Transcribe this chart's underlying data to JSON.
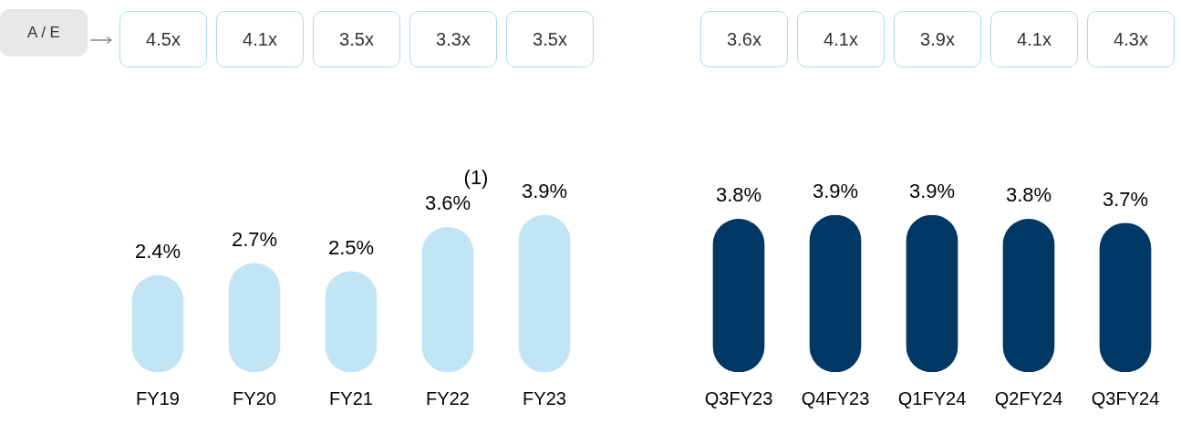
{
  "chart_data": [
    {
      "type": "bar",
      "categories": [
        "FY19",
        "FY20",
        "FY21",
        "FY22",
        "FY23"
      ],
      "series": [
        {
          "color": "#c1e5f4",
          "values": [
            2.4,
            2.7,
            2.5,
            3.6,
            3.9
          ],
          "value_labels": [
            "2.4%",
            "2.7%",
            "2.5%",
            "3.6%",
            "3.9%"
          ]
        }
      ],
      "annotations": [
        "A / E",
        "4.5x",
        "4.1x",
        "3.5x",
        "3.3x",
        "3.5x",
        {
          "text": "(1)",
          "x": "FY22",
          "y": 3.6
        }
      ],
      "grid": false,
      "legend": false,
      "tick_labels": "x"
    },
    {
      "type": "bar",
      "categories": [
        "Q3FY23",
        "Q4FY23",
        "Q1FY24",
        "Q2FY24",
        "Q3FY24"
      ],
      "series": [
        {
          "color": "#003865",
          "values": [
            3.8,
            3.9,
            3.9,
            3.8,
            3.7
          ],
          "value_labels": [
            "3.8%",
            "3.9%",
            "3.9%",
            "3.8%",
            "3.7%"
          ]
        }
      ],
      "annotations": [
        "3.6x",
        "4.1x",
        "3.9x",
        "4.1x",
        "4.3x"
      ],
      "grid": false,
      "legend": false,
      "tick_labels": "x"
    }
  ]
}
